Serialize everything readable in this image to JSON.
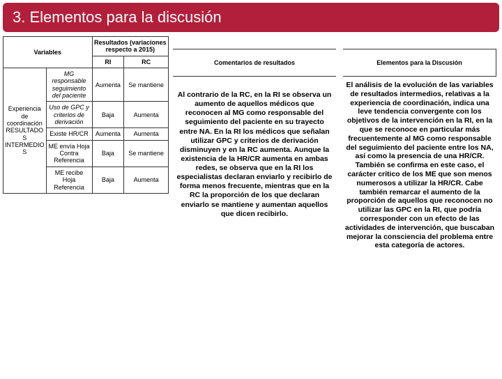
{
  "title": "3. Elementos para la discusión",
  "table": {
    "header_variables": "Variables",
    "header_resultados": "Resultados (variaciones respecto a 2015)",
    "header_ri": "RI",
    "header_rc": "RC",
    "rowgroup_label": "Experiencia de coordinación RESULTADOS INTERMEDIOS",
    "rows": [
      {
        "sub": "MG responsable seguimiento del paciente",
        "sub_italic": true,
        "ri": "Aumenta",
        "rc": "Se mantiene"
      },
      {
        "sub": "Uso de GPC y criterios de derivación",
        "sub_italic": true,
        "ri": "Baja",
        "rc": "Aumenta"
      },
      {
        "sub": "Existe HR/CR",
        "sub_italic": false,
        "ri": "Aumenta",
        "rc": "Aumenta"
      },
      {
        "sub": "ME envía Hoja Contra Referencia",
        "sub_italic": false,
        "ri": "Baja",
        "rc": "Se mantiene"
      },
      {
        "sub": "ME recibe Hoja Referencia",
        "sub_italic": false,
        "ri": "Baja",
        "rc": "Aumenta"
      }
    ]
  },
  "comments": {
    "header": "Comentarios de resultados",
    "body": "Al contrario de la RC, en la RI se observa un aumento de aquellos médicos que reconocen al MG como responsable del seguimiento del paciente en su trayecto entre NA. En la RI los médicos que señalan utilizar GPC y criterios de derivación disminuyen y en la RC aumenta. Aunque la existencia de la HR/CR aumenta en ambas redes, se observa que en la RI los especialistas declaran enviarlo y recibirlo de forma menos frecuente, mientras que en la RC la proporción de los que declaran enviarlo se mantiene y aumentan aquellos que dicen recibirlo."
  },
  "elements": {
    "header": "Elementos para la Discusión",
    "body": "El análisis de la evolución de las variables de resultados intermedios, relativas a la experiencia de coordinación, indica una leve tendencia convergente con los objetivos de la intervención en la RI, en la que se reconoce en particular más frecuentemente al MG como responsable del seguimiento del paciente entre los NA, así como la presencia de una HR/CR. También se confirma en este caso, el carácter crítico de los ME que son menos numerosos a utilizar la HR/CR. Cabe también remarcar el aumento de la proporción de aquellos que reconocen no utilizar las GPC en la RI, que podría corresponder con un efecto de las actividades de intervención, que buscaban mejorar la consciencia del problema entre esta categoría de actores."
  },
  "colors": {
    "accent": "#b21f3a",
    "border": "#333333",
    "bg": "#ffffff"
  }
}
